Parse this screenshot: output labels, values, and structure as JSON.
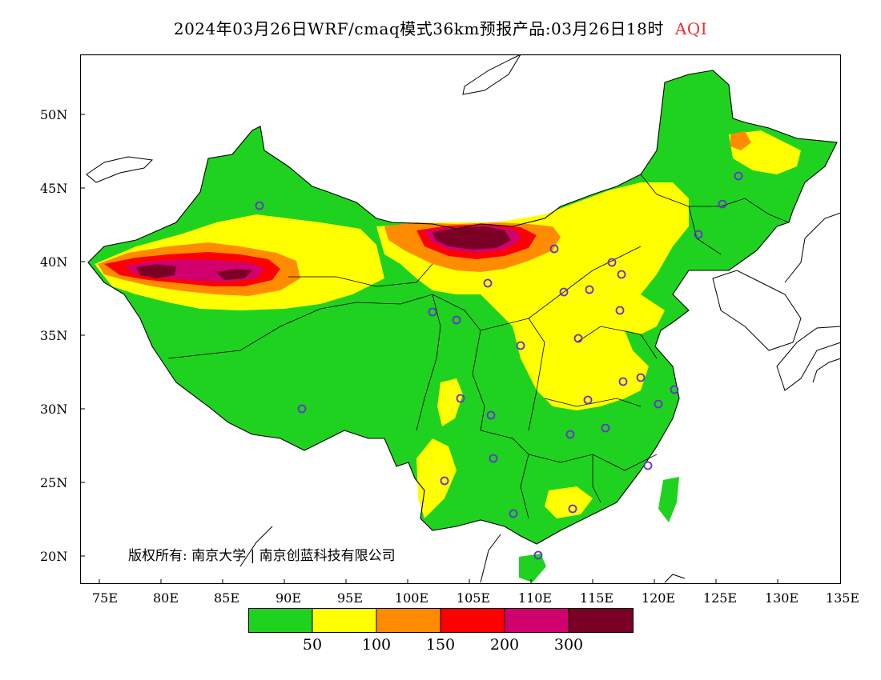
{
  "header": {
    "title": "2024年03月26日WRF/cmaq模式36km预报产品:03月26日18时",
    "variable": "AQI",
    "variable_color": "#e83030"
  },
  "map": {
    "lon_ticks": [
      "75E",
      "80E",
      "85E",
      "90E",
      "95E",
      "100E",
      "105E",
      "110E",
      "115E",
      "120E",
      "125E",
      "130E",
      "135E"
    ],
    "lat_ticks": [
      "50N",
      "45N",
      "40N",
      "35N",
      "30N",
      "25N",
      "20N"
    ],
    "copyright": "版权所有: 南京大学 | 南京创蓝科技有限公司",
    "station_marker_color": "#6a2fd6"
  },
  "legend": {
    "colors": [
      "#1fd21f",
      "#ffff00",
      "#ff8c00",
      "#ff0000",
      "#d2006e",
      "#7a0026"
    ],
    "labels": [
      "50",
      "100",
      "150",
      "200",
      "300"
    ]
  }
}
